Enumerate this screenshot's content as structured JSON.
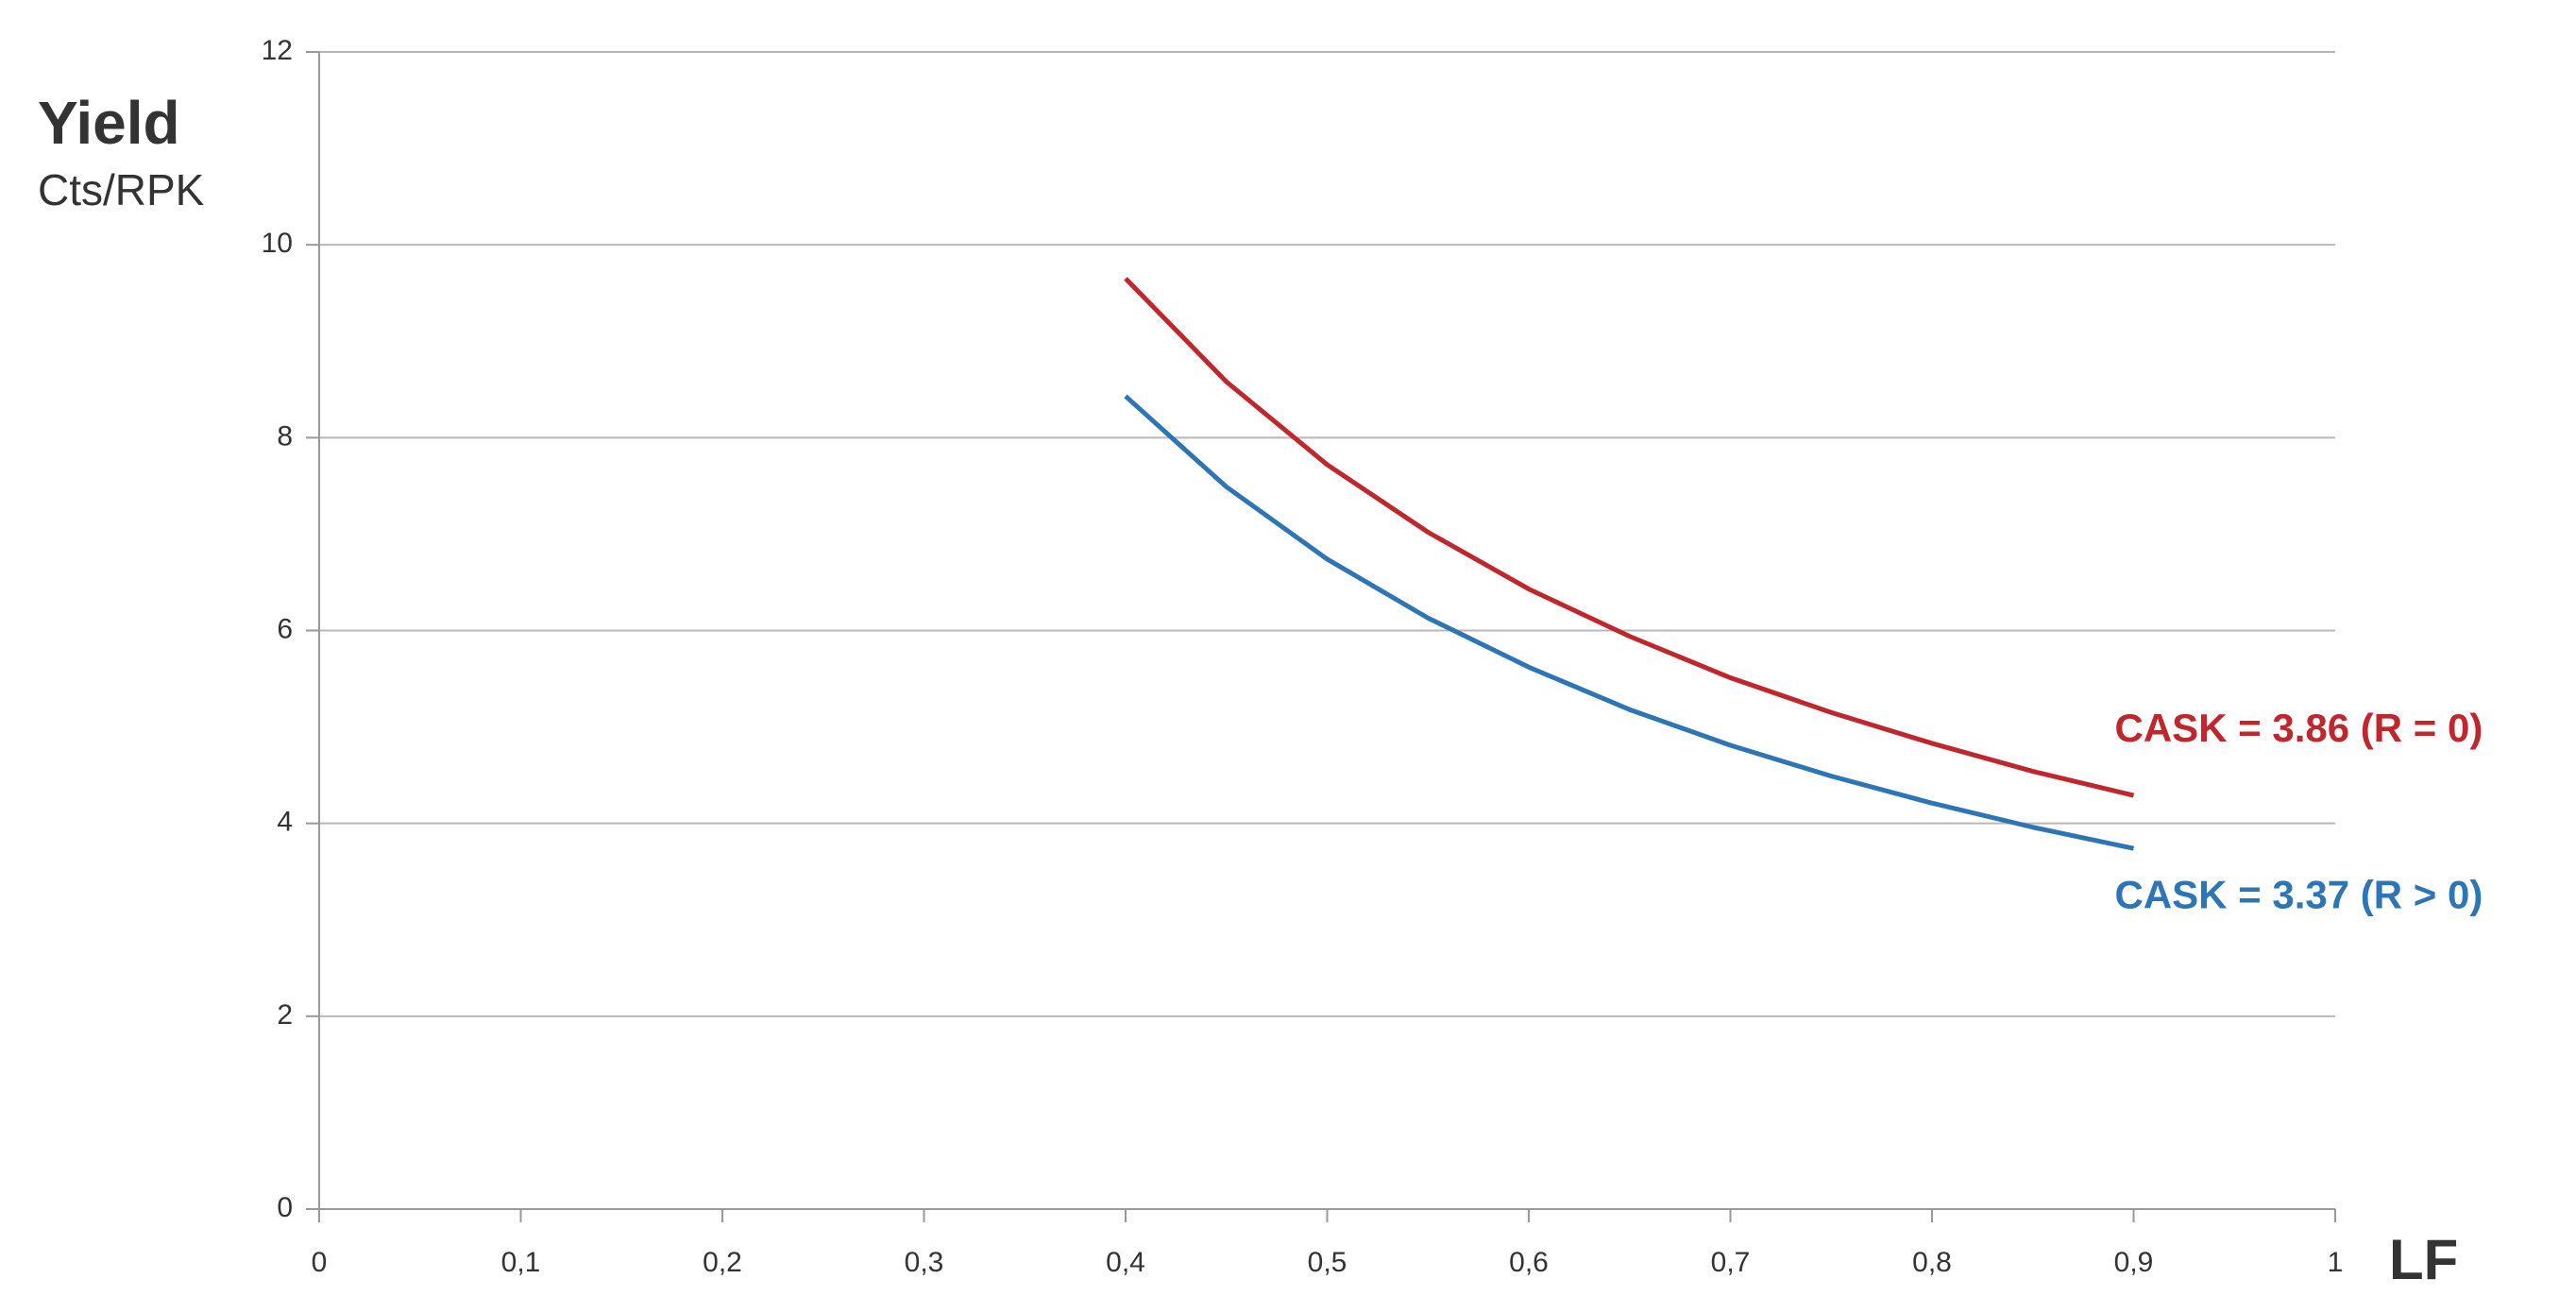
{
  "chart_data": {
    "type": "line",
    "y_label": "Yield",
    "y_unit_label": "Cts/RPK",
    "x_label": "LF",
    "x": [
      0.4,
      0.45,
      0.5,
      0.55,
      0.6,
      0.65,
      0.7,
      0.75,
      0.8,
      0.85,
      0.9
    ],
    "series": [
      {
        "name": "CASK = 3.86 (R = 0)",
        "color": "#c0272d",
        "values": [
          9.65,
          8.58,
          7.72,
          7.02,
          6.43,
          5.94,
          5.51,
          5.15,
          4.83,
          4.54,
          4.29
        ]
      },
      {
        "name": "CASK = 3.37 (R > 0)",
        "color": "#2e75b6",
        "values": [
          8.43,
          7.49,
          6.74,
          6.13,
          5.62,
          5.18,
          4.81,
          4.49,
          4.21,
          3.96,
          3.74
        ]
      }
    ],
    "xlim": [
      0,
      1
    ],
    "xticks": [
      0,
      {
        "value": 0.1,
        "label": "0,1"
      },
      {
        "value": 0.2,
        "label": "0,2"
      },
      {
        "value": 0.3,
        "label": "0,3"
      },
      {
        "value": 0.4,
        "label": "0,4"
      },
      {
        "value": 0.5,
        "label": "0,5"
      },
      {
        "value": 0.6,
        "label": "0,6"
      },
      {
        "value": 0.7,
        "label": "0,7"
      },
      {
        "value": 0.8,
        "label": "0,8"
      },
      {
        "value": 0.9,
        "label": "0,9"
      },
      1
    ],
    "ylim": [
      0,
      12
    ],
    "yticks": [
      0,
      2,
      4,
      6,
      8,
      10,
      12
    ],
    "grid": true
  }
}
